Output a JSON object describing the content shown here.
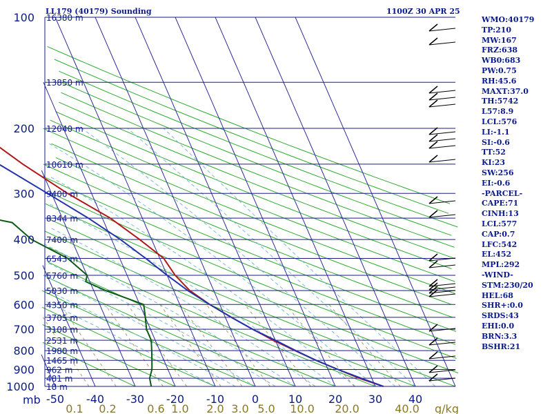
{
  "header": {
    "station": "LL179 (40179) Sounding",
    "valid": "1100Z 30 APR 25"
  },
  "chart_data": {
    "type": "skew-t log-p",
    "pressure_axis": {
      "ticks": [
        100,
        200,
        300,
        400,
        500,
        600,
        700,
        800,
        900,
        1000
      ],
      "unit": "mb"
    },
    "temperature_axis": {
      "ticks": [
        -50,
        -40,
        -30,
        -20,
        -10,
        0,
        10,
        20,
        30,
        40
      ],
      "unit": "°C"
    },
    "mixing_ratio_axis": {
      "ticks": [
        "0.1",
        "0.2",
        "0.6",
        "1.0",
        "2.0",
        "3.0",
        "5.0",
        "10.0",
        "20.0",
        "40.0"
      ],
      "unit": "g/kg"
    },
    "height_labels": [
      {
        "p": 100,
        "text": "16380 m"
      },
      {
        "p": 150,
        "text": "13850 m"
      },
      {
        "p": 200,
        "text": "12040 m"
      },
      {
        "p": 250,
        "text": "10610 m"
      },
      {
        "p": 300,
        "text": "9400 m"
      },
      {
        "p": 350,
        "text": "8344 m"
      },
      {
        "p": 400,
        "text": "7400 m"
      },
      {
        "p": 450,
        "text": "6543 m"
      },
      {
        "p": 500,
        "text": "5760 m"
      },
      {
        "p": 550,
        "text": "5030 m"
      },
      {
        "p": 600,
        "text": "4350 m"
      },
      {
        "p": 650,
        "text": "3705 m"
      },
      {
        "p": 700,
        "text": "3108 m"
      },
      {
        "p": 750,
        "text": "2531 m"
      },
      {
        "p": 800,
        "text": "1980 m"
      },
      {
        "p": 850,
        "text": "1465 m"
      },
      {
        "p": 900,
        "text": "962 m"
      },
      {
        "p": 950,
        "text": "481 m"
      },
      {
        "p": 1000,
        "text": "18 m"
      }
    ],
    "series": [
      {
        "points": [
          [
            1000,
            32
          ],
          [
            950,
            26.8
          ],
          [
            900,
            22.5
          ],
          [
            850,
            18
          ],
          [
            800,
            13.8
          ],
          [
            750,
            9.5
          ],
          [
            700,
            5.5
          ],
          [
            650,
            1.5
          ],
          [
            600,
            -2.5
          ],
          [
            550,
            -6
          ],
          [
            500,
            -8
          ],
          [
            450,
            -9
          ],
          [
            400,
            -13
          ],
          [
            350,
            -18
          ],
          [
            300,
            -26
          ],
          [
            250,
            -34
          ],
          [
            225,
            -38
          ],
          [
            200,
            -44
          ],
          [
            180,
            -47
          ],
          [
            160,
            -52
          ],
          [
            140,
            -59
          ],
          [
            120,
            -64
          ],
          [
            110,
            -68
          ],
          [
            104,
            -71
          ]
        ]
      },
      {
        "points": [
          [
            1000,
            -26
          ],
          [
            950,
            -25.5
          ],
          [
            900,
            -24
          ],
          [
            850,
            -23
          ],
          [
            800,
            -22
          ],
          [
            750,
            -21
          ],
          [
            700,
            -21
          ],
          [
            650,
            -20
          ],
          [
            600,
            -19
          ],
          [
            550,
            -27
          ],
          [
            520,
            -31
          ],
          [
            500,
            -30
          ],
          [
            450,
            -33
          ],
          [
            400,
            -40
          ],
          [
            360,
            -43
          ],
          [
            350,
            -48
          ],
          [
            340,
            -63
          ],
          [
            320,
            -56
          ],
          [
            300,
            -51
          ],
          [
            290,
            -61
          ],
          [
            270,
            -69
          ],
          [
            250,
            -71
          ],
          [
            230,
            -73
          ],
          [
            200,
            -76
          ],
          [
            185,
            -78
          ],
          [
            175,
            -77
          ],
          [
            160,
            -81
          ],
          [
            140,
            -87
          ],
          [
            120,
            -92
          ],
          [
            100,
            -97
          ]
        ]
      },
      {
        "points": [
          [
            1000,
            32
          ],
          [
            950,
            27.3
          ],
          [
            900,
            22.5
          ],
          [
            850,
            18
          ],
          [
            800,
            14
          ],
          [
            750,
            10
          ],
          [
            700,
            5.5
          ],
          [
            650,
            1.5
          ],
          [
            600,
            -2.5
          ],
          [
            550,
            -6.5
          ],
          [
            500,
            -10
          ],
          [
            450,
            -13.5
          ],
          [
            400,
            -17.8
          ],
          [
            350,
            -23.5
          ],
          [
            300,
            -31
          ],
          [
            250,
            -40
          ],
          [
            200,
            -50.5
          ],
          [
            170,
            -58
          ],
          [
            150,
            -63.5
          ],
          [
            130,
            -70
          ],
          [
            115,
            -74
          ]
        ]
      }
    ]
  },
  "indices": [
    "WMO:40179",
    "TP:210",
    "MW:167",
    "FRZ:638",
    "WB0:683",
    "PW:0.75",
    "RH:45.6",
    "MAXT:37.0",
    "TH:5742",
    "L57:8.9",
    "LCL:576",
    "LI:-1.1",
    "SI:-0.6",
    "TT:52",
    "KI:23",
    "SW:256",
    "EI:-0.6",
    "-PARCEL-",
    "CAPE:71",
    "CINH:13",
    "LCL:577",
    "CAP:0.7",
    "LFC:542",
    "EL:452",
    "MPL:292",
    "-WIND-",
    "STM:230/20",
    "HEL:68",
    "SHR+:0.0",
    "SRDS:43",
    "EHI:0.0",
    "BRN:3.3",
    "BSHR:21"
  ],
  "colors": {
    "isobar": "#1a1a8a",
    "isotherm": "#2a2a9a",
    "dry_adiabat": "#2eaa2e",
    "moist_adiabat": "#7ab8d8",
    "mixing_ratio": "#a89a6a",
    "temperature": "#b01818",
    "dewpoint": "#0a5a14",
    "parcel": "#2233aa"
  }
}
